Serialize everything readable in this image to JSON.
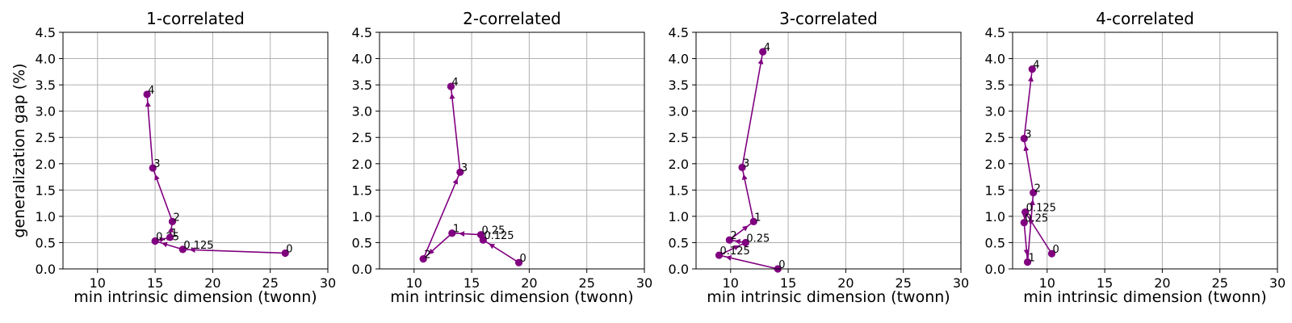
{
  "figure": {
    "ylabel": "generalization gap (%)",
    "xlabel": "min intrinsic dimension (twonn)",
    "xticks": [
      10,
      15,
      20,
      25,
      30
    ],
    "yticks": [
      "0.0",
      "0.5",
      "1.0",
      "1.5",
      "2.0",
      "2.5",
      "3.0",
      "3.5",
      "4.0",
      "4.5"
    ],
    "colors": {
      "series": "#800080",
      "grid": "#b0b0b0",
      "axis": "#000000"
    }
  },
  "chart_data": [
    {
      "type": "line",
      "title": "1-correlated",
      "xlabel": "min intrinsic dimension (twonn)",
      "ylabel": "generalization gap (%)",
      "xlim": [
        7,
        30
      ],
      "ylim": [
        0,
        4.5
      ],
      "grid": true,
      "points": [
        {
          "label": "0",
          "x": 26.3,
          "y": 0.3
        },
        {
          "label": "0.125",
          "x": 17.4,
          "y": 0.37
        },
        {
          "label": "0.25",
          "x": 15.0,
          "y": 0.53
        },
        {
          "label": "1",
          "x": 16.3,
          "y": 0.6
        },
        {
          "label": "2",
          "x": 16.5,
          "y": 0.9
        },
        {
          "label": "3",
          "x": 14.8,
          "y": 1.92
        },
        {
          "label": "4",
          "x": 14.3,
          "y": 3.32
        }
      ]
    },
    {
      "type": "line",
      "title": "2-correlated",
      "xlabel": "min intrinsic dimension (twonn)",
      "ylabel": "",
      "xlim": [
        7,
        30
      ],
      "ylim": [
        0,
        4.5
      ],
      "grid": true,
      "points": [
        {
          "label": "0",
          "x": 19.1,
          "y": 0.12
        },
        {
          "label": "0.125",
          "x": 16.0,
          "y": 0.55
        },
        {
          "label": "0.25",
          "x": 15.8,
          "y": 0.65
        },
        {
          "label": "1",
          "x": 13.3,
          "y": 0.68
        },
        {
          "label": "2",
          "x": 10.8,
          "y": 0.19
        },
        {
          "label": "3",
          "x": 14.0,
          "y": 1.84
        },
        {
          "label": "4",
          "x": 13.2,
          "y": 3.47
        }
      ]
    },
    {
      "type": "line",
      "title": "3-correlated",
      "xlabel": "min intrinsic dimension (twonn)",
      "ylabel": "",
      "xlim": [
        7,
        30
      ],
      "ylim": [
        0,
        4.5
      ],
      "grid": true,
      "points": [
        {
          "label": "0",
          "x": 14.1,
          "y": 0.0
        },
        {
          "label": "0.125",
          "x": 9.0,
          "y": 0.26
        },
        {
          "label": "0.25",
          "x": 11.3,
          "y": 0.5
        },
        {
          "label": "2",
          "x": 9.9,
          "y": 0.55
        },
        {
          "label": "1",
          "x": 12.0,
          "y": 0.9
        },
        {
          "label": "3",
          "x": 11.0,
          "y": 1.93
        },
        {
          "label": "4",
          "x": 12.8,
          "y": 4.13
        }
      ]
    },
    {
      "type": "line",
      "title": "4-correlated",
      "xlabel": "min intrinsic dimension (twonn)",
      "ylabel": "",
      "xlim": [
        7,
        30
      ],
      "ylim": [
        0,
        4.5
      ],
      "grid": true,
      "points": [
        {
          "label": "0",
          "x": 10.4,
          "y": 0.29
        },
        {
          "label": "0.125",
          "x": 8.1,
          "y": 1.08
        },
        {
          "label": "0.25",
          "x": 8.0,
          "y": 0.88
        },
        {
          "label": "1",
          "x": 8.3,
          "y": 0.13
        },
        {
          "label": "2",
          "x": 8.8,
          "y": 1.45
        },
        {
          "label": "3",
          "x": 8.0,
          "y": 2.48
        },
        {
          "label": "4",
          "x": 8.7,
          "y": 3.8
        }
      ]
    }
  ]
}
